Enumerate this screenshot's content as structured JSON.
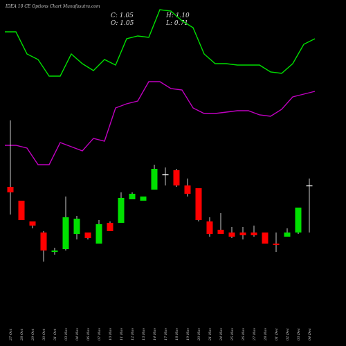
{
  "header": {
    "title": "IDEA 10 CE Options Chart Munafasutra.com",
    "close": "C: 1.05",
    "high": "H: 1.10",
    "open": "O: 1.05",
    "low": "L: 0.71"
  },
  "colors": {
    "background": "#000000",
    "bullish": "#00e000",
    "bearish": "#ff0000",
    "upper_band": "#00e000",
    "lower_band": "#c000c0",
    "wick": "#ffffff"
  },
  "chart_data": {
    "type": "candlestick",
    "x": [
      "27 Oct",
      "28 Oct",
      "29 Oct",
      "30 Oct",
      "31 Oct",
      "03 Nov",
      "04 Nov",
      "06 Nov",
      "07 Nov",
      "10 Nov",
      "11 Nov",
      "12 Nov",
      "13 Nov",
      "14 Nov",
      "17 Nov",
      "18 Nov",
      "19 Nov",
      "20 Nov",
      "21 Nov",
      "24 Nov",
      "25 Nov",
      "26 Nov",
      "27 Nov",
      "28 Nov",
      "01 Dec",
      "02 Dec",
      "03 Dec",
      "04 Dec"
    ],
    "candles": [
      {
        "open": 1.04,
        "high": 1.52,
        "low": 0.84,
        "close": 1.0
      },
      {
        "open": 0.94,
        "high": 0.94,
        "low": 0.8,
        "close": 0.8
      },
      {
        "open": 0.79,
        "high": 0.79,
        "low": 0.74,
        "close": 0.76
      },
      {
        "open": 0.71,
        "high": 0.72,
        "low": 0.5,
        "close": 0.58
      },
      {
        "open": 0.57,
        "high": 0.6,
        "low": 0.55,
        "close": 0.58
      },
      {
        "open": 0.59,
        "high": 0.97,
        "low": 0.58,
        "close": 0.82
      },
      {
        "open": 0.7,
        "high": 0.83,
        "low": 0.66,
        "close": 0.81
      },
      {
        "open": 0.71,
        "high": 0.71,
        "low": 0.66,
        "close": 0.67
      },
      {
        "open": 0.63,
        "high": 0.8,
        "low": 0.63,
        "close": 0.77
      },
      {
        "open": 0.78,
        "high": 0.79,
        "low": 0.72,
        "close": 0.72
      },
      {
        "open": 0.78,
        "high": 1.0,
        "low": 0.78,
        "close": 0.96
      },
      {
        "open": 0.95,
        "high": 1.0,
        "low": 0.95,
        "close": 0.99
      },
      {
        "open": 0.94,
        "high": 0.97,
        "low": 0.94,
        "close": 0.97
      },
      {
        "open": 1.02,
        "high": 1.2,
        "low": 1.02,
        "close": 1.17
      },
      {
        "open": 1.13,
        "high": 1.18,
        "low": 1.05,
        "close": 1.13
      },
      {
        "open": 1.16,
        "high": 1.17,
        "low": 1.04,
        "close": 1.05
      },
      {
        "open": 1.05,
        "high": 1.1,
        "low": 0.97,
        "close": 0.99
      },
      {
        "open": 1.03,
        "high": 1.03,
        "low": 0.79,
        "close": 0.8
      },
      {
        "open": 0.79,
        "high": 0.82,
        "low": 0.68,
        "close": 0.7
      },
      {
        "open": 0.73,
        "high": 0.85,
        "low": 0.7,
        "close": 0.7
      },
      {
        "open": 0.71,
        "high": 0.75,
        "low": 0.67,
        "close": 0.68
      },
      {
        "open": 0.71,
        "high": 0.75,
        "low": 0.66,
        "close": 0.69
      },
      {
        "open": 0.71,
        "high": 0.76,
        "low": 0.68,
        "close": 0.69
      },
      {
        "open": 0.71,
        "high": 0.71,
        "low": 0.63,
        "close": 0.63
      },
      {
        "open": 0.63,
        "high": 0.71,
        "low": 0.57,
        "close": 0.62
      },
      {
        "open": 0.68,
        "high": 0.74,
        "low": 0.68,
        "close": 0.71
      },
      {
        "open": 0.71,
        "high": 0.89,
        "low": 0.7,
        "close": 0.89
      },
      {
        "open": 1.05,
        "high": 1.1,
        "low": 0.71,
        "close": 1.05
      }
    ],
    "upper_band": [
      2.16,
      2.16,
      2.0,
      1.96,
      1.84,
      1.84,
      2.0,
      1.93,
      1.88,
      1.96,
      1.92,
      2.11,
      2.13,
      2.12,
      2.32,
      2.31,
      2.24,
      2.19,
      2.0,
      1.93,
      1.93,
      1.92,
      1.92,
      1.92,
      1.87,
      1.86,
      1.93,
      2.07,
      2.11
    ],
    "lower_band": [
      1.34,
      1.34,
      1.32,
      1.2,
      1.2,
      1.36,
      1.33,
      1.3,
      1.39,
      1.37,
      1.61,
      1.64,
      1.66,
      1.8,
      1.8,
      1.75,
      1.74,
      1.61,
      1.57,
      1.57,
      1.58,
      1.59,
      1.59,
      1.56,
      1.55,
      1.6,
      1.69,
      1.71,
      1.73
    ],
    "band_x": [
      -0.5,
      0.5,
      1.5,
      2.5,
      3.5,
      4.5,
      5.5,
      6.5,
      7.5,
      8.5,
      9.5,
      10.5,
      11.5,
      12.5,
      13.5,
      14.5,
      15.5,
      16.5,
      17.5,
      18.5,
      19.5,
      20.5,
      21.5,
      22.5,
      23.5,
      24.5,
      25.5,
      26.5,
      27.5
    ],
    "ylim": [
      0.4,
      2.55
    ]
  }
}
